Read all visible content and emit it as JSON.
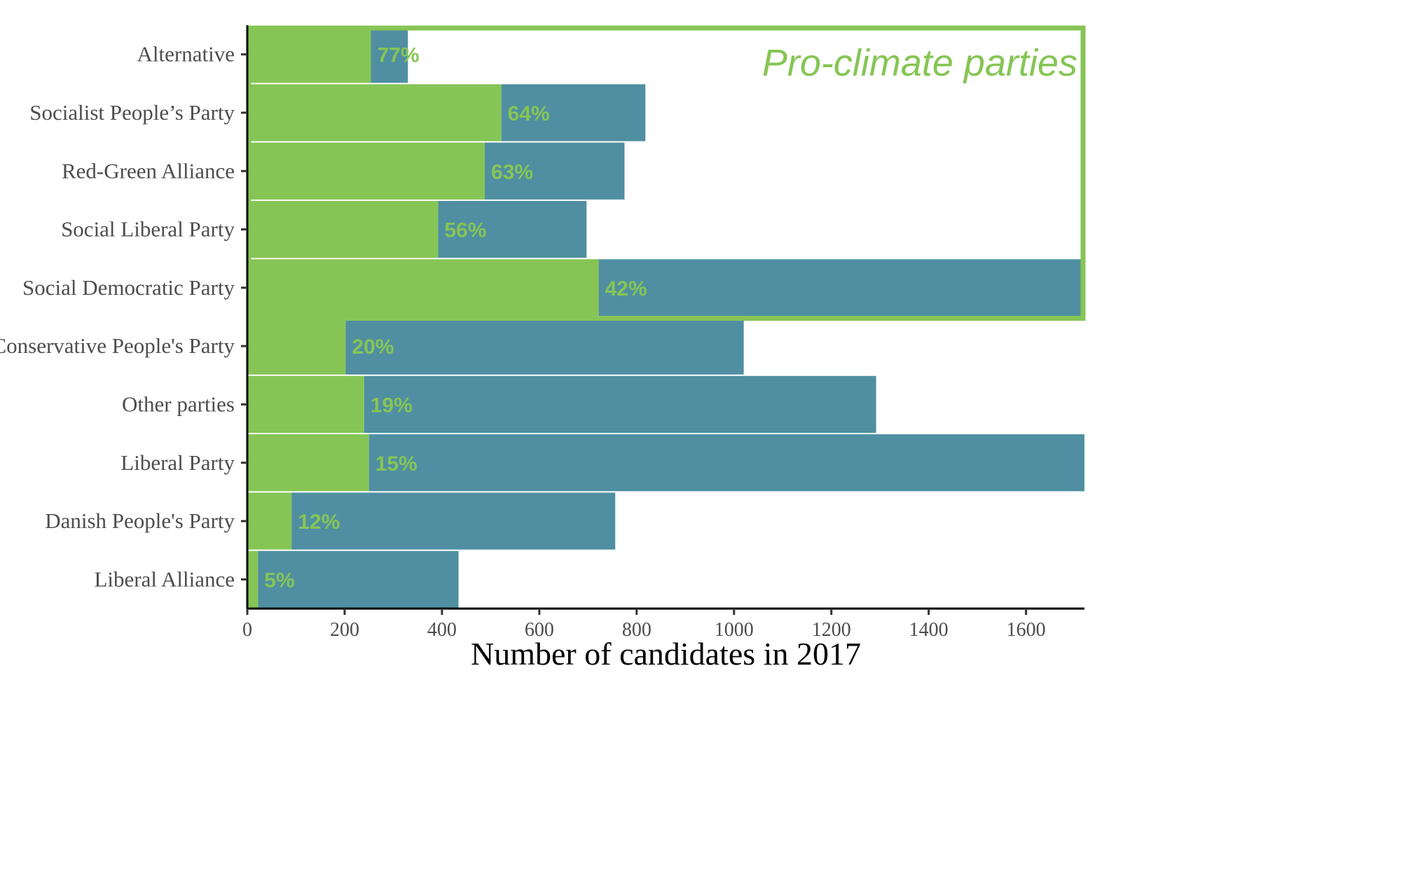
{
  "chart_data": {
    "type": "bar",
    "orientation": "horizontal",
    "stacked": true,
    "xlabel": "Number of candidates in 2017",
    "ylabel": "",
    "xlim": [
      0,
      1720
    ],
    "xticks": [
      0,
      200,
      400,
      600,
      800,
      1000,
      1200,
      1400,
      1600
    ],
    "grid": false,
    "categories": [
      "Alternative",
      "Socialist People’s Party",
      "Red-Green Alliance",
      "Social Liberal Party",
      "Social Democratic Party",
      "Conservative People's Party",
      "Other parties",
      "Liberal Party",
      "Danish People's Party",
      "Liberal Alliance"
    ],
    "series": [
      {
        "color": "#86c555",
        "values": [
          254,
          522,
          488,
          392,
          722,
          202,
          240,
          250,
          91,
          22
        ]
      },
      {
        "color": "#508fa1",
        "values": [
          76,
          296,
          287,
          305,
          995,
          818,
          1052,
          1470,
          665,
          412
        ]
      }
    ],
    "pct_labels": [
      "77%",
      "64%",
      "63%",
      "56%",
      "42%",
      "20%",
      "19%",
      "15%",
      "12%",
      "5%"
    ],
    "pct_label_color": "#86c555",
    "annotation": {
      "text": "Pro-climate parties",
      "color": "#86c555",
      "encloses_categories": [
        "Alternative",
        "Socialist People’s Party",
        "Red-Green Alliance",
        "Social Liberal Party",
        "Social Democratic Party"
      ]
    }
  }
}
